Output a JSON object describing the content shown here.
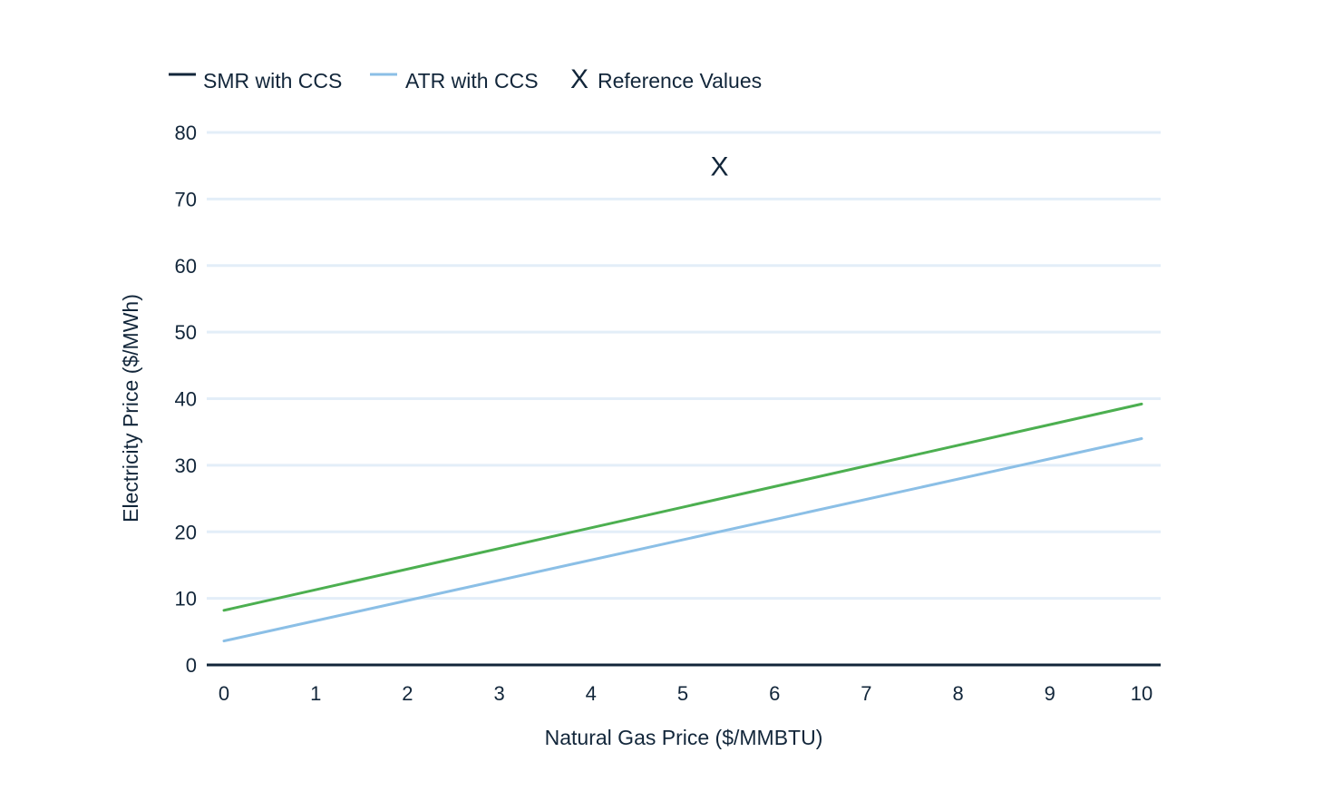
{
  "chart_data": {
    "type": "line",
    "title": "",
    "xlabel": "Natural Gas Price ($/MMBTU)",
    "ylabel": "Electricity Price ($/MWh)",
    "xlim": [
      0,
      10
    ],
    "ylim": [
      0,
      80
    ],
    "x_ticks": [
      "0",
      "1",
      "2",
      "3",
      "4",
      "5",
      "6",
      "7",
      "8",
      "9",
      "10"
    ],
    "y_ticks": [
      "0",
      "10",
      "20",
      "30",
      "40",
      "50",
      "60",
      "70",
      "80"
    ],
    "grid": true,
    "legend_position": "top-left",
    "series": [
      {
        "name": "SMR with CCS",
        "legend_color": "#12263a",
        "color": "#4caf50",
        "x": [
          0,
          10
        ],
        "y": [
          8.2,
          39.2
        ]
      },
      {
        "name": "ATR with CCS",
        "legend_color": "#8bbfe6",
        "color": "#8bbfe6",
        "x": [
          0,
          10
        ],
        "y": [
          3.6,
          34.0
        ]
      }
    ],
    "reference_values": {
      "name": "Reference Values",
      "marker": "X",
      "points": [
        {
          "x": 5.4,
          "y": 75
        }
      ]
    },
    "colors": {
      "text": "#12263a",
      "grid": "#e3eef8",
      "axis": "#12263a"
    }
  }
}
